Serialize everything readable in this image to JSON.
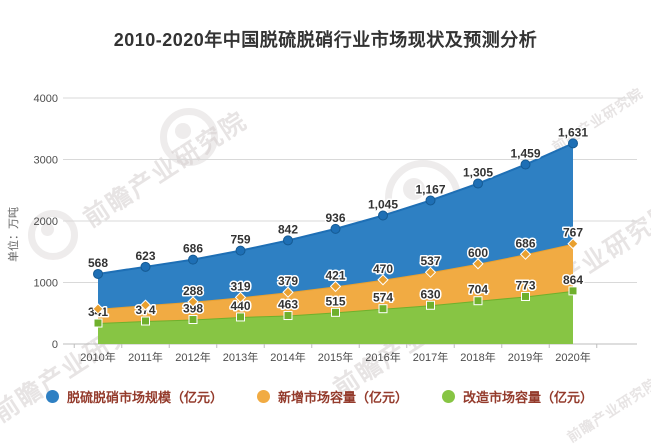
{
  "title": "2010-2020年中国脱硫脱硝行业市场现状及预测分析",
  "watermark_text": "前瞻产业研究院",
  "colors": {
    "title": "#333333",
    "legend_text": "#943b2c",
    "grid": "#d9d9d9",
    "axis": "#bdbdbd",
    "tick_label": "#4d4d4d",
    "data_label": "#333333",
    "background": "#ffffff"
  },
  "chart_data": {
    "type": "area",
    "stacked": true,
    "title": "2010-2020年中国脱硫脱硝行业市场现状及预测分析",
    "xlabel": "",
    "ylabel": "单位：万吨",
    "ylim": [
      0,
      4000
    ],
    "yticks": [
      0,
      1000,
      2000,
      3000,
      4000
    ],
    "grid": "horizontal",
    "legend_position": "bottom",
    "categories": [
      "2010年",
      "2011年",
      "2012年",
      "2013年",
      "2014年",
      "2015年",
      "2016年",
      "2017年",
      "2018年",
      "2019年",
      "2020年"
    ],
    "series": [
      {
        "name": "脱硫脱硝市场规模（亿元）",
        "color": "#2e80c3",
        "line_color": "#1e6fb5",
        "marker": "circle",
        "values": [
          568,
          623,
          686,
          759,
          842,
          936,
          1045,
          1167,
          1305,
          1459,
          1631
        ],
        "labels": [
          "568",
          "623",
          "686",
          "759",
          "842",
          "936",
          "1,045",
          "1,167",
          "1,305",
          "1,459",
          "1,631"
        ]
      },
      {
        "name": "新增市场容量（亿元）",
        "color": "#f1ab43",
        "line_color": "#e9a02f",
        "marker": "diamond",
        "values": [
          230,
          258,
          288,
          319,
          379,
          421,
          470,
          537,
          600,
          686,
          767
        ],
        "labels": [
          "",
          "",
          "288",
          "319",
          "379",
          "421",
          "470",
          "537",
          "600",
          "686",
          "767"
        ]
      },
      {
        "name": "改造市场容量（亿元）",
        "color": "#87c544",
        "line_color": "#6fb02c",
        "marker": "square",
        "values": [
          341,
          374,
          398,
          440,
          463,
          515,
          574,
          630,
          704,
          773,
          864
        ],
        "labels": [
          "341",
          "374",
          "398",
          "440",
          "463",
          "515",
          "574",
          "630",
          "704",
          "773",
          "864"
        ]
      }
    ],
    "stack_order_bottom_to_top": [
      2,
      1,
      0
    ]
  }
}
